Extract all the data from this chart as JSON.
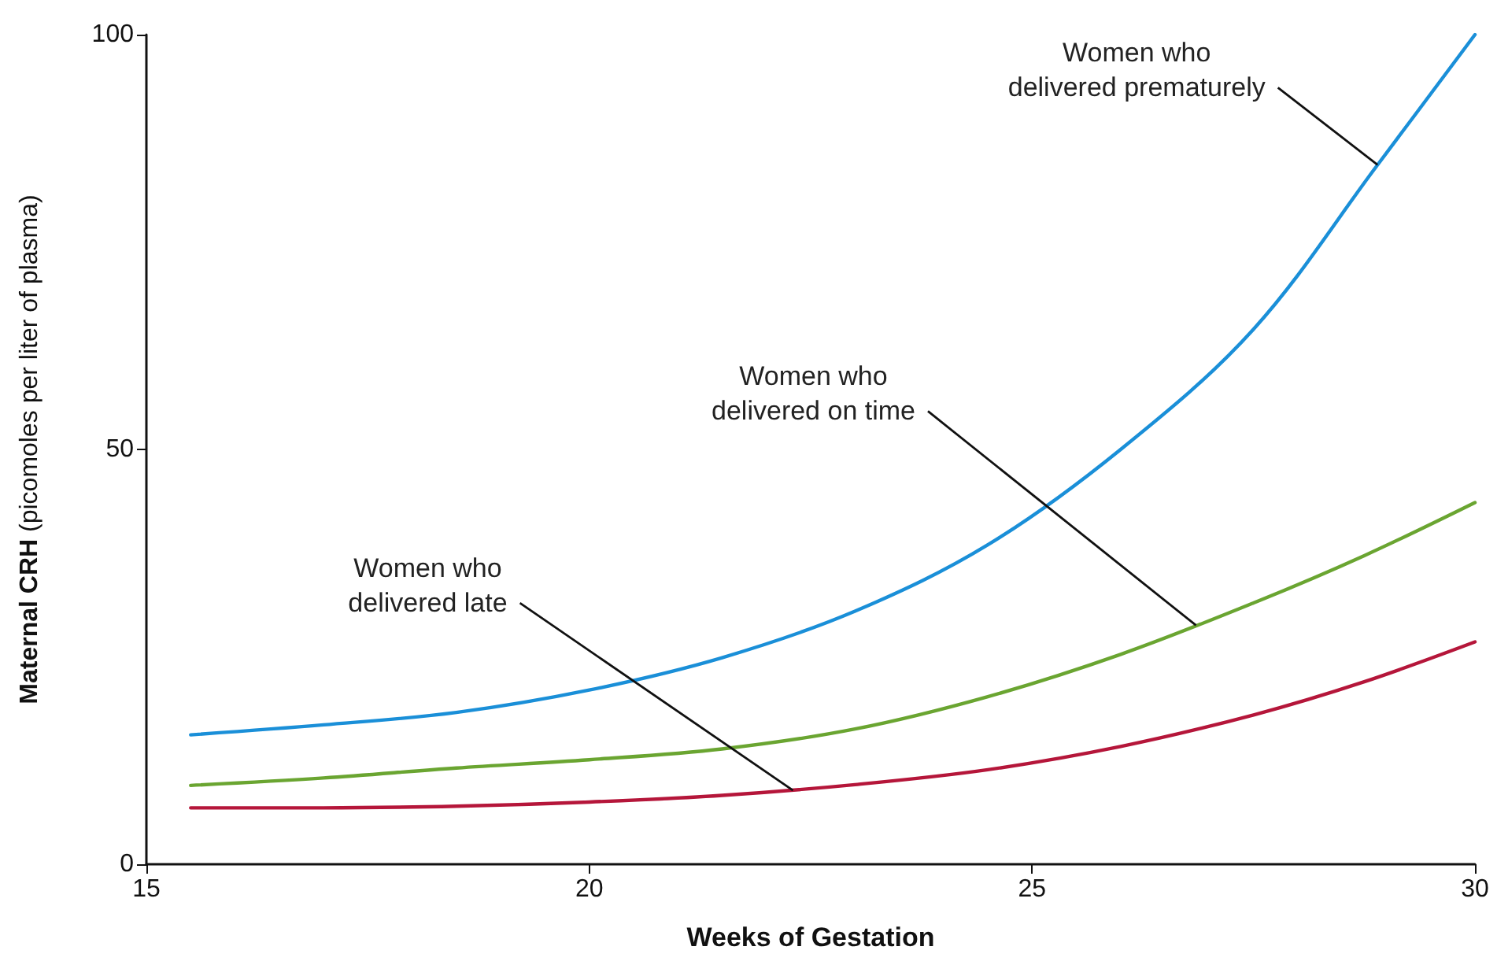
{
  "chart_data": {
    "type": "line",
    "xlabel": "Weeks of Gestation",
    "ylabel": "Maternal CRH (picomoles per liter of plasma)",
    "xlim": [
      15,
      30
    ],
    "xticks": [
      15,
      20,
      25,
      30
    ],
    "ylim": [
      0,
      100
    ],
    "yticks": [
      0,
      50,
      100
    ],
    "grid": false,
    "marker": "none",
    "line_style": "solid",
    "series": [
      {
        "color": "#1a8fd8",
        "x": [
          15.5,
          17,
          18.5,
          20,
          21.5,
          23,
          24.5,
          26,
          27.5,
          28.9,
          30
        ],
        "values": [
          15.6,
          16.8,
          18.3,
          21.0,
          24.9,
          30.5,
          38.5,
          50,
          64.5,
          84.3,
          100
        ]
      },
      {
        "color": "#6aa531",
        "x": [
          15.5,
          17,
          18.5,
          20,
          21.5,
          23,
          24.5,
          26,
          27.5,
          28.75,
          30
        ],
        "values": [
          9.5,
          10.4,
          11.6,
          12.6,
          13.9,
          16.3,
          20.2,
          25.3,
          31.5,
          37.2,
          43.6
        ]
      },
      {
        "color": "#b5163a",
        "x": [
          15.5,
          17,
          18.5,
          20,
          21.5,
          23,
          24.5,
          26,
          27.5,
          28.75,
          30
        ],
        "values": [
          6.8,
          6.8,
          7.0,
          7.5,
          8.3,
          9.6,
          11.4,
          14.2,
          18.0,
          22.0,
          26.8
        ]
      }
    ],
    "annotations": [
      {
        "text": "Women who\ndelivered late",
        "x": 22.3,
        "y": 8.9
      },
      {
        "text": "Women who\ndelivered on time",
        "x": 26.85,
        "y": 28.8
      },
      {
        "text": "Women who\ndelivered prematurely",
        "x": 28.9,
        "y": 84.3
      }
    ]
  }
}
